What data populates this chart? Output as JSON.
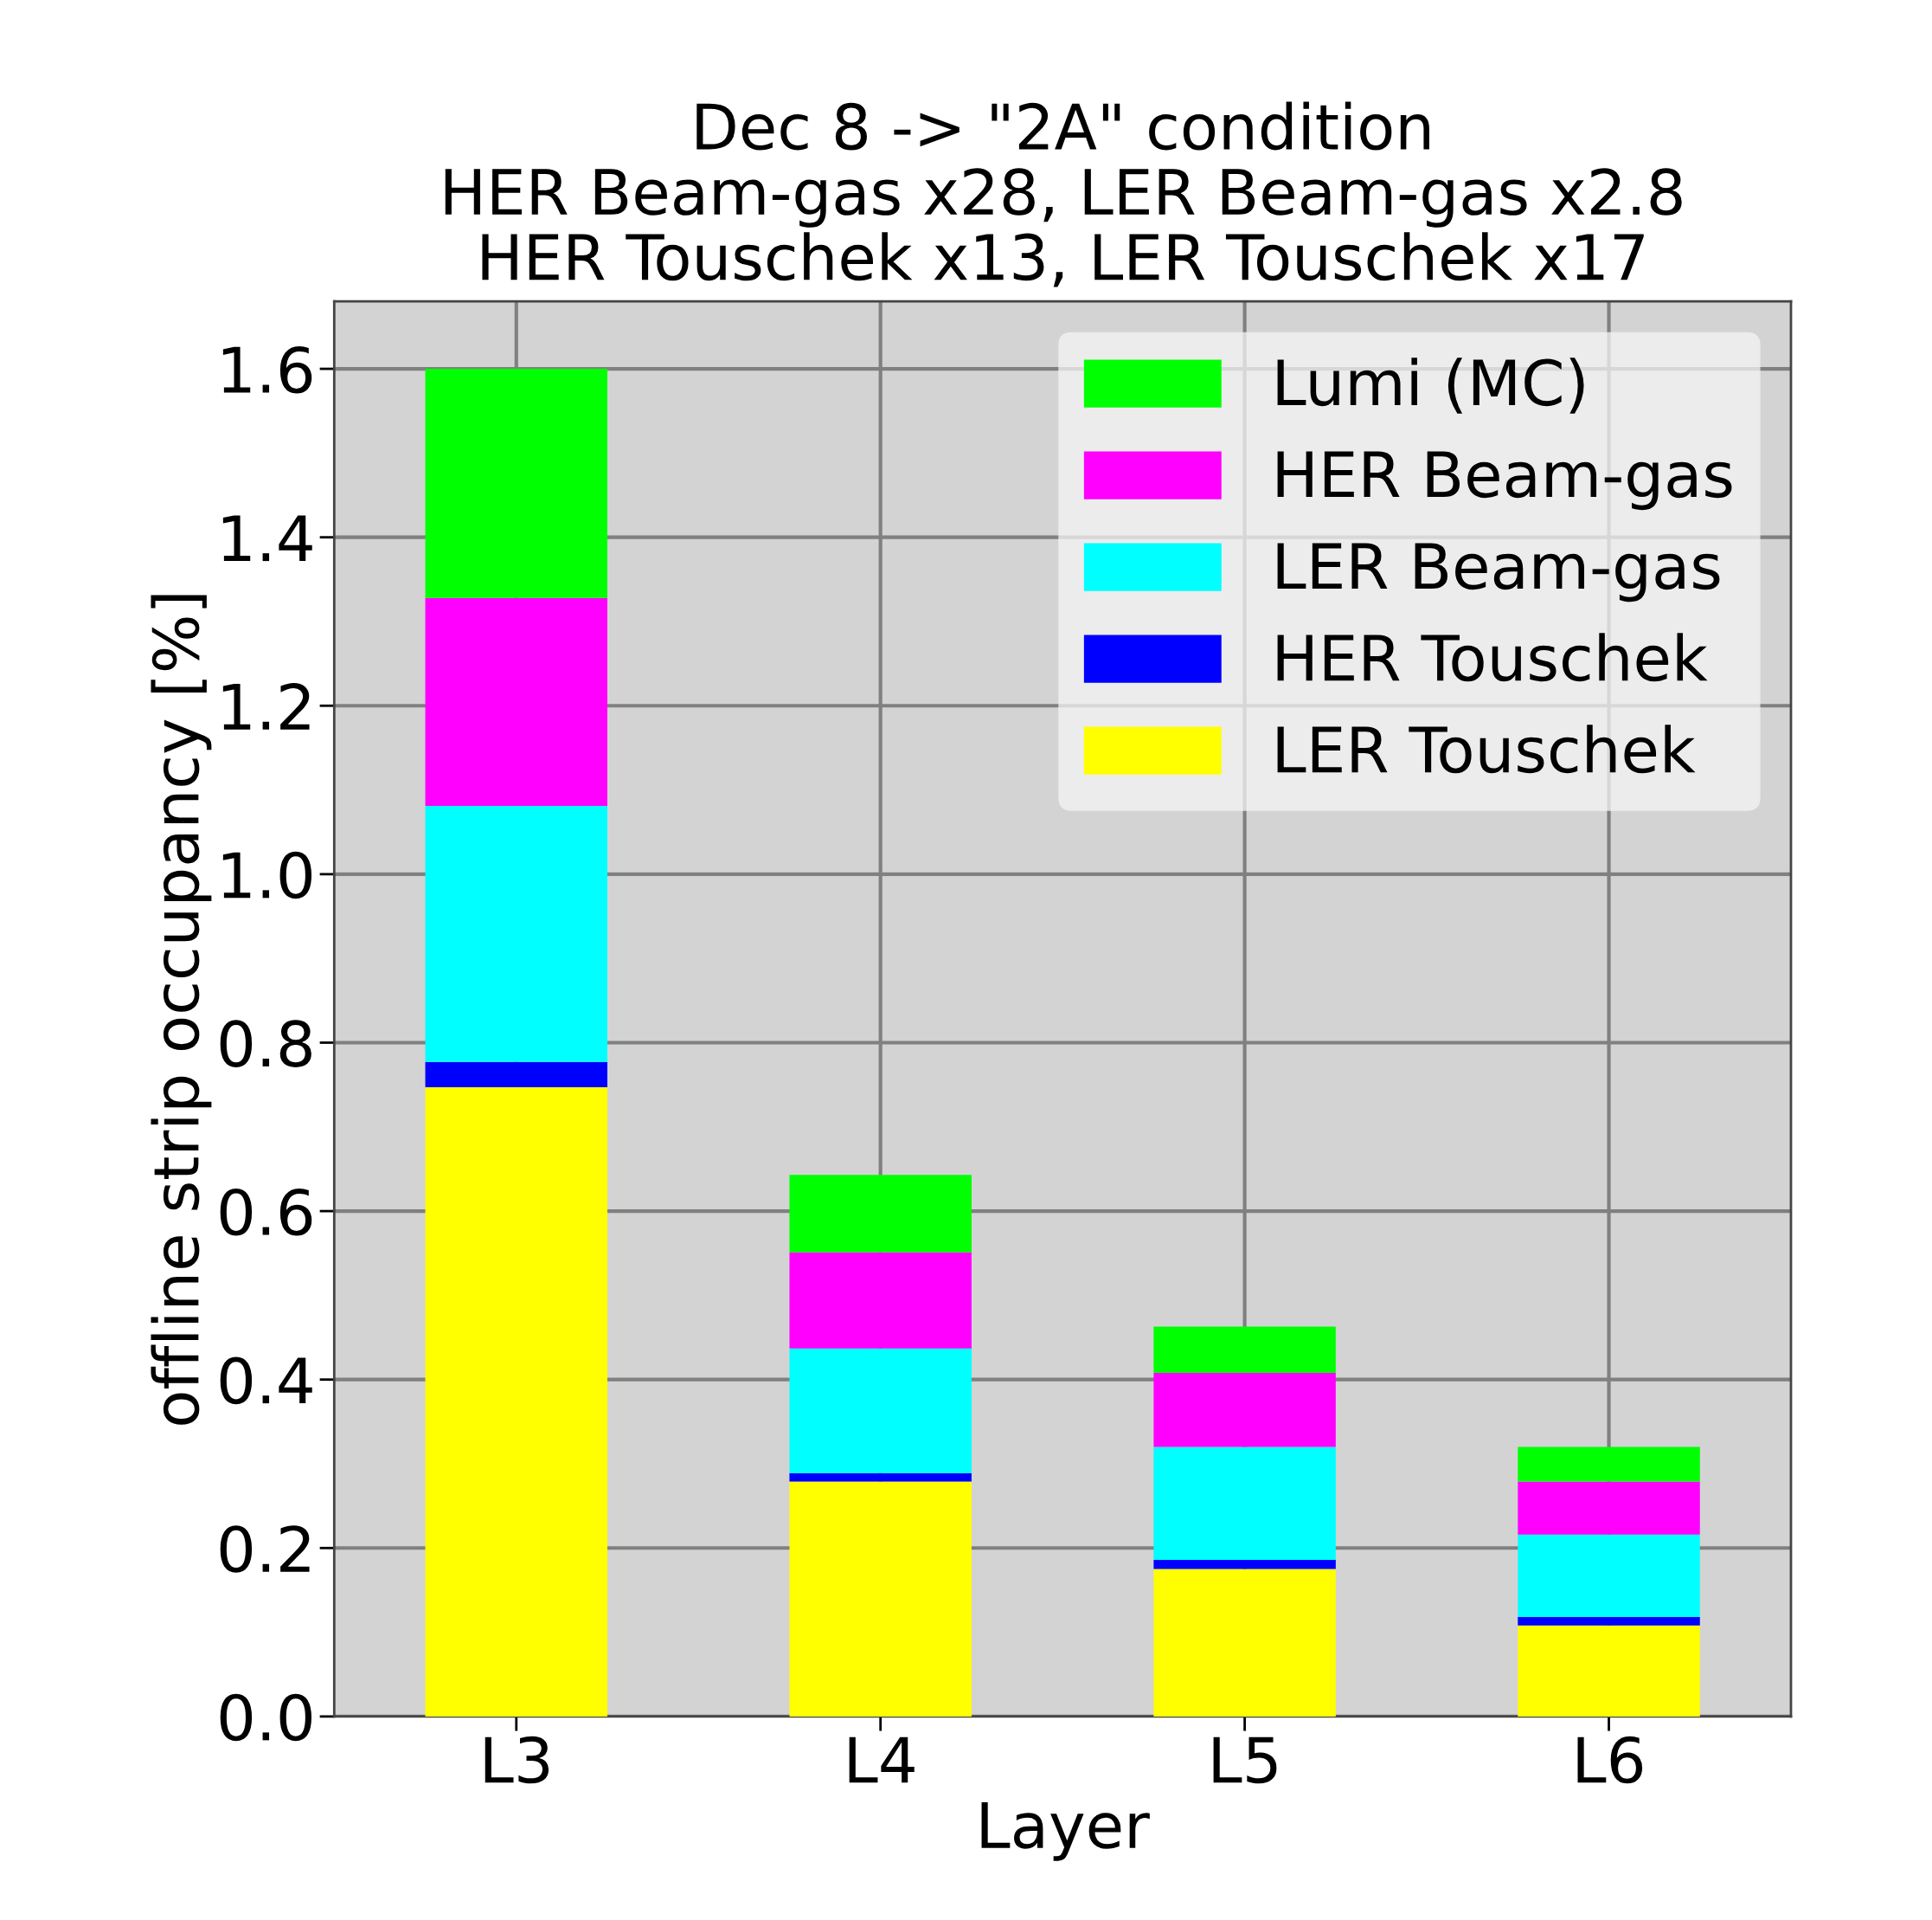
{
  "chart_data": {
    "type": "bar",
    "title": "Dec 8 -> \"2A\" condition\nHER Beam-gas x28, LER Beam-gas x2.8\nHER Touschek x13, LER Touschek x17",
    "xlabel": "Layer",
    "ylabel": "offline strip occupancy [%]",
    "categories": [
      "L3",
      "L4",
      "L5",
      "L6"
    ],
    "stacked": true,
    "series": [
      {
        "name": "LER Touschek",
        "color": "#ffff00",
        "values": [
          0.747,
          0.279,
          0.175,
          0.108
        ]
      },
      {
        "name": "HER Touschek",
        "color": "#0000ff",
        "values": [
          0.03,
          0.01,
          0.011,
          0.01
        ]
      },
      {
        "name": "LER Beam-gas",
        "color": "#00ffff",
        "values": [
          0.304,
          0.148,
          0.134,
          0.098
        ]
      },
      {
        "name": "HER Beam-gas",
        "color": "#ff00ff",
        "values": [
          0.247,
          0.114,
          0.088,
          0.063
        ]
      },
      {
        "name": "Lumi (MC)",
        "color": "#00ff00",
        "values": [
          0.272,
          0.092,
          0.055,
          0.041
        ]
      }
    ],
    "ylim": [
      0,
      1.68
    ],
    "yticks": [
      {
        "value": 0,
        "label": "0.0"
      },
      0.2,
      0.4,
      0.6,
      0.8,
      {
        "value": 1,
        "label": "1.0"
      },
      1.2,
      1.4,
      1.6
    ],
    "grid": true,
    "legend": "top right"
  }
}
